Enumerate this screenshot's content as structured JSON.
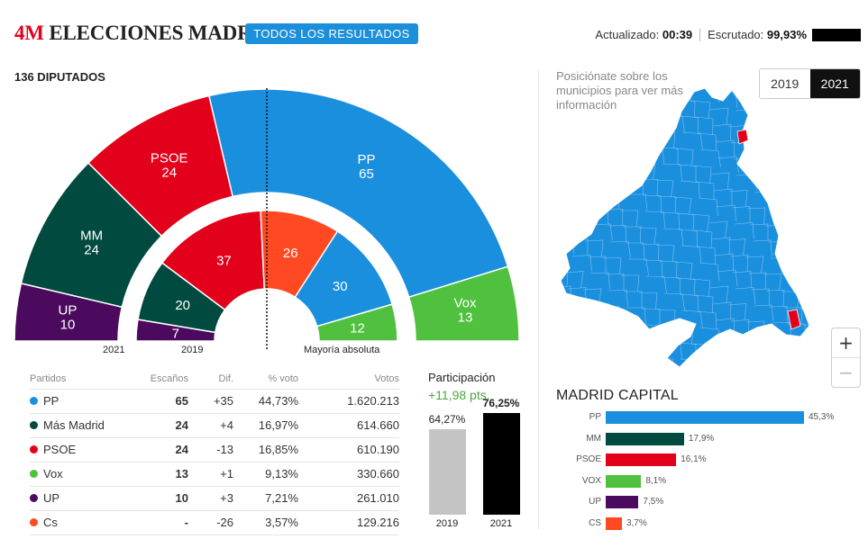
{
  "header": {
    "tag": "4M",
    "title": "ELECCIONES MADRID",
    "all_results_button": "TODOS LOS RESULTADOS",
    "updated_label": "Actualizado:",
    "updated_time": "00:39",
    "counted_label": "Escrutado:",
    "counted_value": "99,93%"
  },
  "hemicycle": {
    "title": "136 DIPUTADOS",
    "label_2021": "2021",
    "label_2019": "2019",
    "majority_label": "Mayoría absoluta",
    "outer_2021": [
      {
        "party": "UP",
        "seats": 10,
        "color": "#4b0a5e"
      },
      {
        "party": "MM",
        "seats": 24,
        "color": "#004a3f"
      },
      {
        "party": "PSOE",
        "seats": 24,
        "color": "#e3001b"
      },
      {
        "party": "PP",
        "seats": 65,
        "color": "#1a8fde"
      },
      {
        "party": "Vox",
        "seats": 13,
        "color": "#4fc13e"
      }
    ],
    "inner_2019": [
      {
        "party": "UP",
        "seats": 7,
        "color": "#4b0a5e"
      },
      {
        "party": "MM",
        "seats": 20,
        "color": "#004a3f"
      },
      {
        "party": "PSOE",
        "seats": 37,
        "color": "#e3001b"
      },
      {
        "party": "Cs",
        "seats": 26,
        "color": "#ff4922"
      },
      {
        "party": "PP",
        "seats": 30,
        "color": "#1a8fde"
      },
      {
        "party": "Vox",
        "seats": 12,
        "color": "#4fc13e"
      }
    ]
  },
  "table": {
    "headers": {
      "party": "Partidos",
      "seats": "Escaños",
      "dif": "Dif.",
      "pct": "% voto",
      "votes": "Votos"
    },
    "rows": [
      {
        "party": "PP",
        "color": "#1a8fde",
        "seats": "65",
        "dif": "+35",
        "pct": "44,73%",
        "votes": "1.620.213"
      },
      {
        "party": "Más Madrid",
        "color": "#004a3f",
        "seats": "24",
        "dif": "+4",
        "pct": "16,97%",
        "votes": "614.660"
      },
      {
        "party": "PSOE",
        "color": "#e3001b",
        "seats": "24",
        "dif": "-13",
        "pct": "16,85%",
        "votes": "610.190"
      },
      {
        "party": "Vox",
        "color": "#4fc13e",
        "seats": "13",
        "dif": "+1",
        "pct": "9,13%",
        "votes": "330.660"
      },
      {
        "party": "UP",
        "color": "#4b0a5e",
        "seats": "10",
        "dif": "+3",
        "pct": "7,21%",
        "votes": "261.010"
      },
      {
        "party": "Cs",
        "color": "#ff4922",
        "seats": "-",
        "dif": "-26",
        "pct": "3,57%",
        "votes": "129.216"
      }
    ]
  },
  "participation": {
    "title": "Participación",
    "delta": "+11,98 pts.",
    "bars": [
      {
        "year": "2019",
        "label": "64,27%",
        "value": 64.27,
        "color": "#c4c4c4"
      },
      {
        "year": "2021",
        "label": "76,25%",
        "value": 76.25,
        "color": "#000000"
      }
    ]
  },
  "map": {
    "hint": "Posiciónate sobre los municipios para ver más información",
    "years": [
      "2019",
      "2021"
    ],
    "active_year": "2021",
    "fill_color": "#1a8fde",
    "highlight_color": "#e3001b",
    "zoom_in": "+",
    "zoom_out": "−"
  },
  "capital": {
    "title": "MADRID CAPITAL",
    "rows": [
      {
        "party": "PP",
        "value": 45.3,
        "label": "45,3%",
        "color": "#1a8fde"
      },
      {
        "party": "MM",
        "value": 17.9,
        "label": "17,9%",
        "color": "#004a3f"
      },
      {
        "party": "PSOE",
        "value": 16.1,
        "label": "16,1%",
        "color": "#e3001b"
      },
      {
        "party": "VOX",
        "value": 8.1,
        "label": "8,1%",
        "color": "#4fc13e"
      },
      {
        "party": "UP",
        "value": 7.5,
        "label": "7,5%",
        "color": "#4b0a5e"
      },
      {
        "party": "CS",
        "value": 3.7,
        "label": "3,7%",
        "color": "#ff4922"
      }
    ]
  }
}
